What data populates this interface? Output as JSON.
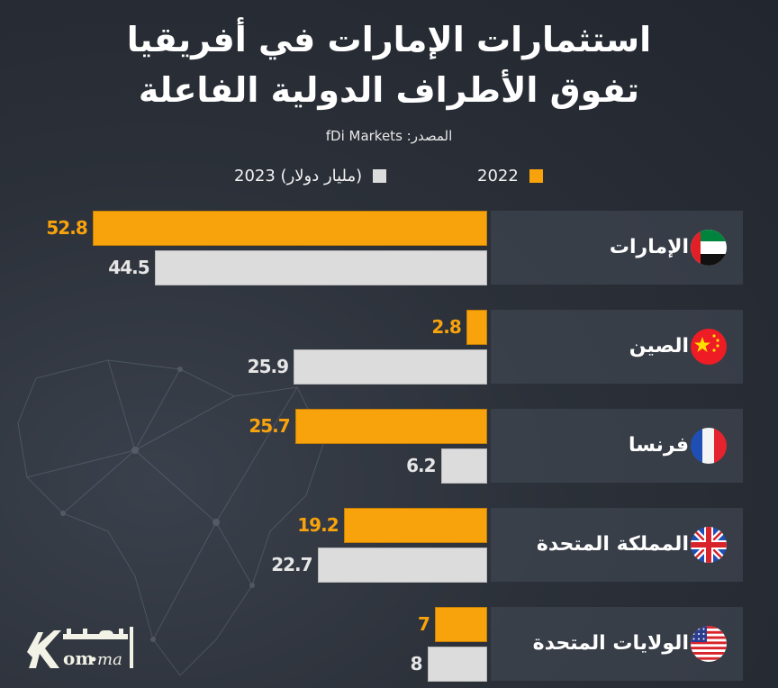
{
  "header": {
    "title_line1": "استثمارات الإمارات في أفريقيا",
    "title_line2": "تفوق الأطراف الدولية الفاعلة",
    "source": "المصدر: fDi Markets"
  },
  "legend": {
    "items": [
      {
        "label": "2022",
        "color": "#f9a30c"
      },
      {
        "label": "2023 (مليار دولار)",
        "color": "#dcdcdc"
      }
    ]
  },
  "logo": {
    "text_arabic": "اقتصاد",
    "text_latin": "Kom.ma"
  },
  "chart_data": {
    "type": "bar",
    "orientation": "horizontal",
    "title": "استثمارات الإمارات في أفريقيا تفوق الأطراف الدولية الفاعلة",
    "unit": "مليار دولار",
    "categories": [
      "الإمارات",
      "الصين",
      "فرنسا",
      "المملكة المتحدة",
      "الولايات المتحدة"
    ],
    "flags": [
      "uae-flag-icon",
      "china-flag-icon",
      "france-flag-icon",
      "uk-flag-icon",
      "usa-flag-icon"
    ],
    "series": [
      {
        "name": "2022",
        "color": "#f9a30c",
        "values": [
          52.8,
          2.8,
          25.7,
          19.2,
          7
        ],
        "labels": [
          "52.8",
          "2.8",
          "25.7",
          "19.2",
          "7"
        ]
      },
      {
        "name": "2023",
        "color": "#dcdcdc",
        "values": [
          44.5,
          25.9,
          6.2,
          22.7,
          8
        ],
        "labels": [
          "44.5",
          "25.9",
          "6.2",
          "22.7",
          "8"
        ]
      }
    ],
    "xlim": [
      0,
      55
    ],
    "grid": false,
    "legend_position": "top"
  }
}
